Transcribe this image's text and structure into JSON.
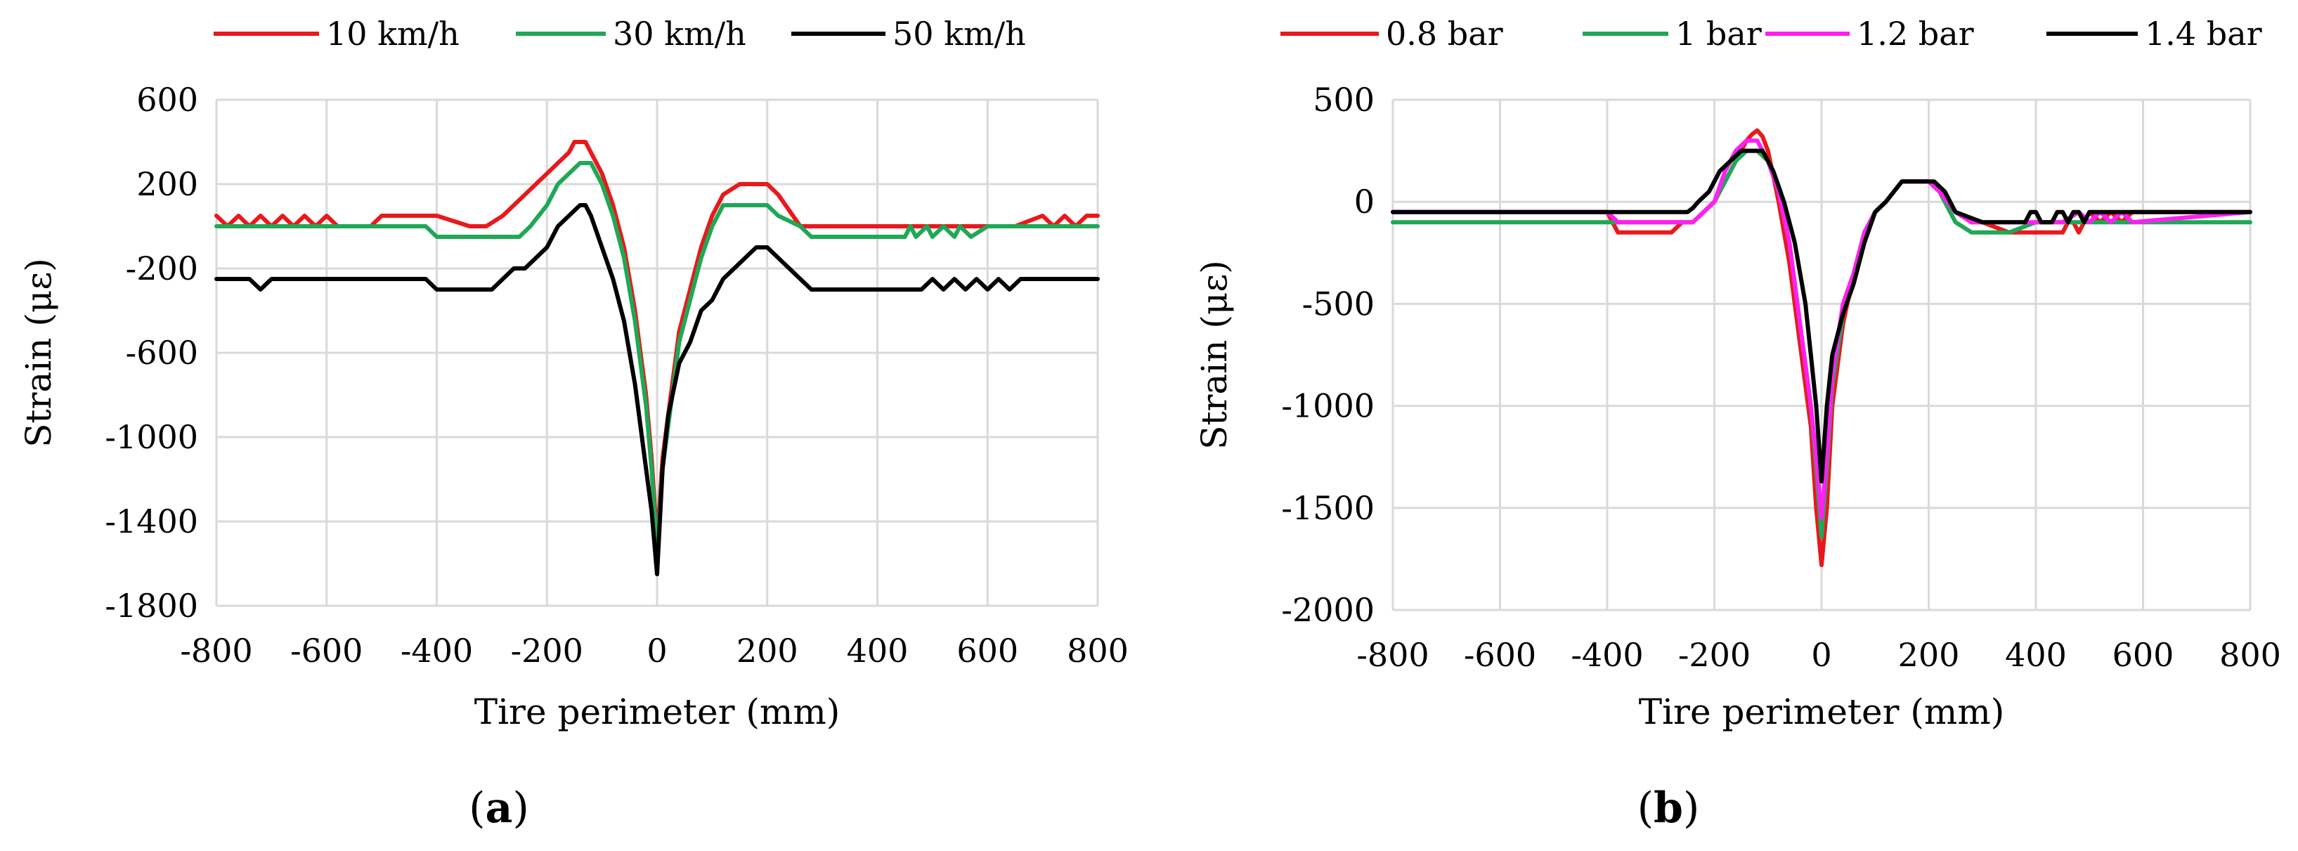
{
  "colors": {
    "red": "#e8191c",
    "green": "#1fa855",
    "magenta": "#ff1ff2",
    "black": "#000000",
    "grid": "#d9d9d9"
  },
  "chart_data": [
    {
      "type": "line",
      "panel_label": "(a)",
      "title": "",
      "xlabel": "Tire perimeter (mm)",
      "ylabel": "Strain (με)",
      "xlim": [
        -800,
        800
      ],
      "ylim": [
        -1800,
        600
      ],
      "xticks": [
        -800,
        -600,
        -400,
        -200,
        0,
        200,
        400,
        600,
        800
      ],
      "yticks": [
        600,
        200,
        -200,
        -600,
        -1000,
        -1400,
        -1800
      ],
      "xtick_labels": [
        "-800",
        "-600",
        "-400",
        "-200",
        "0",
        "200",
        "400",
        "600",
        "800"
      ],
      "ytick_labels": [
        "600",
        "200",
        "-200",
        "-600",
        "-1000",
        "-1400",
        "-1800"
      ],
      "grid": true,
      "legend": "top",
      "series": [
        {
          "name": "10 km/h",
          "color": "#e8191c",
          "x": [
            -800,
            -780,
            -760,
            -740,
            -720,
            -700,
            -680,
            -660,
            -640,
            -620,
            -600,
            -580,
            -520,
            -500,
            -450,
            -400,
            -340,
            -310,
            -280,
            -260,
            -240,
            -220,
            -200,
            -180,
            -160,
            -150,
            -140,
            -130,
            -120,
            -100,
            -80,
            -60,
            -40,
            -20,
            -10,
            0,
            10,
            20,
            40,
            60,
            80,
            100,
            120,
            150,
            200,
            220,
            260,
            280,
            400,
            430,
            460,
            500,
            550,
            600,
            650,
            700,
            720,
            740,
            760,
            780,
            800
          ],
          "y": [
            50,
            0,
            50,
            0,
            50,
            0,
            50,
            0,
            50,
            0,
            50,
            0,
            0,
            50,
            50,
            50,
            0,
            0,
            50,
            100,
            150,
            200,
            250,
            300,
            350,
            400,
            400,
            400,
            350,
            250,
            100,
            -100,
            -400,
            -800,
            -1100,
            -1500,
            -1100,
            -900,
            -500,
            -300,
            -100,
            50,
            150,
            200,
            200,
            150,
            0,
            0,
            0,
            0,
            0,
            0,
            0,
            0,
            0,
            50,
            0,
            50,
            0,
            50,
            50
          ]
        },
        {
          "name": "30 km/h",
          "color": "#1fa855",
          "x": [
            -800,
            -700,
            -600,
            -500,
            -420,
            -400,
            -350,
            -300,
            -250,
            -230,
            -200,
            -180,
            -160,
            -140,
            -130,
            -120,
            -100,
            -80,
            -60,
            -40,
            -20,
            -10,
            0,
            10,
            20,
            40,
            60,
            80,
            100,
            120,
            150,
            200,
            220,
            260,
            280,
            450,
            460,
            470,
            490,
            500,
            520,
            540,
            550,
            570,
            600,
            800
          ],
          "y": [
            0,
            0,
            0,
            0,
            0,
            -50,
            -50,
            -50,
            -50,
            0,
            100,
            200,
            250,
            300,
            300,
            300,
            200,
            50,
            -150,
            -450,
            -850,
            -1150,
            -1550,
            -1150,
            -950,
            -550,
            -350,
            -150,
            0,
            100,
            100,
            100,
            50,
            0,
            -50,
            -50,
            0,
            -50,
            0,
            -50,
            0,
            -50,
            0,
            -50,
            0,
            0
          ]
        },
        {
          "name": "50 km/h",
          "color": "#000000",
          "x": [
            -800,
            -740,
            -720,
            -700,
            -600,
            -420,
            -400,
            -300,
            -280,
            -260,
            -240,
            -200,
            -180,
            -160,
            -140,
            -130,
            -120,
            -100,
            -80,
            -60,
            -40,
            -20,
            -10,
            0,
            10,
            20,
            40,
            60,
            80,
            100,
            120,
            160,
            180,
            200,
            240,
            260,
            280,
            300,
            400,
            480,
            500,
            520,
            540,
            560,
            580,
            600,
            620,
            640,
            660,
            800
          ],
          "y": [
            -250,
            -250,
            -300,
            -250,
            -250,
            -250,
            -300,
            -300,
            -250,
            -200,
            -200,
            -100,
            0,
            50,
            100,
            100,
            50,
            -100,
            -250,
            -450,
            -750,
            -1150,
            -1350,
            -1650,
            -1150,
            -900,
            -650,
            -550,
            -400,
            -350,
            -250,
            -150,
            -100,
            -100,
            -200,
            -250,
            -300,
            -300,
            -300,
            -300,
            -250,
            -300,
            -250,
            -300,
            -250,
            -300,
            -250,
            -300,
            -250,
            -250
          ]
        }
      ]
    },
    {
      "type": "line",
      "panel_label": "(b)",
      "title": "",
      "xlabel": "Tire perimeter (mm)",
      "ylabel": "Strain (με)",
      "xlim": [
        -800,
        800
      ],
      "ylim": [
        -2000,
        500
      ],
      "xticks": [
        -800,
        -600,
        -400,
        -200,
        0,
        200,
        400,
        600,
        800
      ],
      "yticks": [
        500,
        0,
        -500,
        -1000,
        -1500,
        -2000
      ],
      "xtick_labels": [
        "-800",
        "-600",
        "-400",
        "-200",
        "0",
        "200",
        "400",
        "600",
        "800"
      ],
      "ytick_labels": [
        "500",
        "0",
        "-500",
        "-1000",
        "-1500",
        "-2000"
      ],
      "grid": true,
      "legend": "top",
      "series": [
        {
          "name": "0.8 bar",
          "color": "#e8191c",
          "x": [
            -800,
            -400,
            -390,
            -380,
            -370,
            -300,
            -280,
            -260,
            -240,
            -220,
            -200,
            -180,
            -160,
            -140,
            -130,
            -120,
            -110,
            -100,
            -80,
            -60,
            -40,
            -20,
            -10,
            0,
            10,
            20,
            40,
            60,
            80,
            100,
            120,
            150,
            200,
            220,
            250,
            280,
            300,
            350,
            400,
            450,
            460,
            470,
            480,
            490,
            500,
            520,
            540,
            560,
            580,
            800
          ],
          "y": [
            -50,
            -50,
            -100,
            -150,
            -150,
            -150,
            -150,
            -100,
            -100,
            -50,
            0,
            100,
            200,
            300,
            330,
            350,
            320,
            250,
            0,
            -300,
            -700,
            -1100,
            -1500,
            -1780,
            -1500,
            -1000,
            -600,
            -350,
            -150,
            -50,
            0,
            100,
            100,
            50,
            -50,
            -100,
            -100,
            -150,
            -150,
            -150,
            -100,
            -100,
            -150,
            -100,
            -50,
            -100,
            -50,
            -100,
            -50,
            -50
          ]
        },
        {
          "name": "1 bar",
          "color": "#1fa855",
          "x": [
            -800,
            -300,
            -280,
            -260,
            -240,
            -220,
            -200,
            -180,
            -160,
            -140,
            -120,
            -100,
            -80,
            -60,
            -40,
            -20,
            -10,
            0,
            10,
            20,
            40,
            60,
            80,
            100,
            120,
            150,
            200,
            220,
            250,
            280,
            300,
            350,
            400,
            800
          ],
          "y": [
            -100,
            -100,
            -100,
            -100,
            -100,
            -50,
            0,
            100,
            200,
            250,
            250,
            200,
            50,
            -200,
            -600,
            -1000,
            -1300,
            -1640,
            -1300,
            -900,
            -550,
            -350,
            -150,
            -50,
            0,
            100,
            100,
            50,
            -100,
            -150,
            -150,
            -150,
            -100,
            -100
          ]
        },
        {
          "name": "1.2 bar",
          "color": "#ff1ff2",
          "x": [
            -800,
            -400,
            -380,
            -300,
            -260,
            -240,
            -200,
            -180,
            -160,
            -140,
            -120,
            -100,
            -80,
            -60,
            -40,
            -20,
            -10,
            0,
            10,
            20,
            40,
            60,
            80,
            100,
            120,
            150,
            200,
            220,
            250,
            280,
            300,
            350,
            400,
            450,
            480,
            500,
            520,
            540,
            560,
            580,
            800
          ],
          "y": [
            -50,
            -50,
            -100,
            -100,
            -100,
            -100,
            0,
            150,
            250,
            300,
            300,
            200,
            50,
            -200,
            -600,
            -1000,
            -1250,
            -1550,
            -1250,
            -850,
            -500,
            -350,
            -150,
            -50,
            0,
            100,
            100,
            50,
            -50,
            -100,
            -100,
            -100,
            -100,
            -100,
            -50,
            -100,
            -50,
            -100,
            -50,
            -100,
            -50
          ]
        },
        {
          "name": "1.4 bar",
          "color": "#000000",
          "x": [
            -800,
            -250,
            -240,
            -230,
            -210,
            -200,
            -190,
            -170,
            -150,
            -130,
            -110,
            -100,
            -90,
            -70,
            -50,
            -30,
            -20,
            -10,
            0,
            10,
            20,
            40,
            60,
            80,
            100,
            120,
            150,
            160,
            200,
            210,
            230,
            250,
            280,
            300,
            350,
            380,
            390,
            400,
            410,
            430,
            440,
            450,
            460,
            470,
            480,
            490,
            500,
            800
          ],
          "y": [
            -50,
            -50,
            -30,
            0,
            50,
            100,
            150,
            200,
            250,
            250,
            250,
            200,
            150,
            0,
            -200,
            -500,
            -750,
            -1000,
            -1370,
            -1000,
            -750,
            -550,
            -400,
            -200,
            -50,
            0,
            100,
            100,
            100,
            100,
            50,
            -50,
            -80,
            -100,
            -100,
            -100,
            -50,
            -50,
            -100,
            -100,
            -50,
            -50,
            -100,
            -50,
            -50,
            -100,
            -50,
            -50
          ]
        }
      ]
    }
  ]
}
